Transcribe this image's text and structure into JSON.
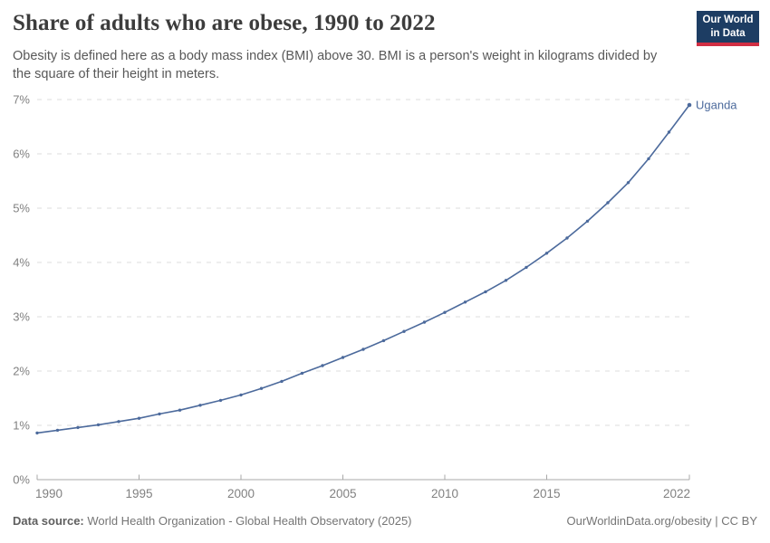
{
  "header": {
    "title": "Share of adults who are obese, 1990 to 2022",
    "subtitle": "Obesity is defined here as a body mass index (BMI) above 30. BMI is a person's weight in kilograms divided by the square of their height in meters.",
    "logo": {
      "line1": "Our World",
      "line2": "in Data"
    }
  },
  "chart_data": {
    "type": "line",
    "title": "Share of adults who are obese, 1990 to 2022",
    "xlabel": "",
    "ylabel": "",
    "xlim": [
      1990,
      2022
    ],
    "ylim": [
      0,
      7
    ],
    "grid": "horizontal-dashed",
    "legend_position": "end-of-line-label",
    "x_ticks": [
      1990,
      1995,
      2000,
      2005,
      2010,
      2015,
      2022
    ],
    "y_ticks": [
      "0%",
      "1%",
      "2%",
      "3%",
      "4%",
      "5%",
      "6%",
      "7%"
    ],
    "series": [
      {
        "name": "Uganda",
        "color": "#4c6a9c",
        "x": [
          1990,
          1991,
          1992,
          1993,
          1994,
          1995,
          1996,
          1997,
          1998,
          1999,
          2000,
          2001,
          2002,
          2003,
          2004,
          2005,
          2006,
          2007,
          2008,
          2009,
          2010,
          2011,
          2012,
          2013,
          2014,
          2015,
          2016,
          2017,
          2018,
          2019,
          2020,
          2021,
          2022
        ],
        "values": [
          0.86,
          0.91,
          0.96,
          1.01,
          1.07,
          1.13,
          1.21,
          1.28,
          1.37,
          1.46,
          1.56,
          1.68,
          1.81,
          1.96,
          2.1,
          2.25,
          2.4,
          2.56,
          2.73,
          2.9,
          3.08,
          3.27,
          3.46,
          3.67,
          3.91,
          4.17,
          4.45,
          4.76,
          5.1,
          5.47,
          5.91,
          6.4,
          6.9
        ]
      }
    ]
  },
  "footer": {
    "source_label": "Data source:",
    "source_text": " World Health Organization - Global Health Observatory (2025)",
    "rights": "OurWorldinData.org/obesity | CC BY"
  },
  "colors": {
    "line": "#4c6a9c",
    "grid": "#dedede",
    "axis": "#a8a8a8",
    "tick_label": "#818181",
    "logo_bg": "#1d3d63",
    "logo_accent": "#d12e43"
  }
}
